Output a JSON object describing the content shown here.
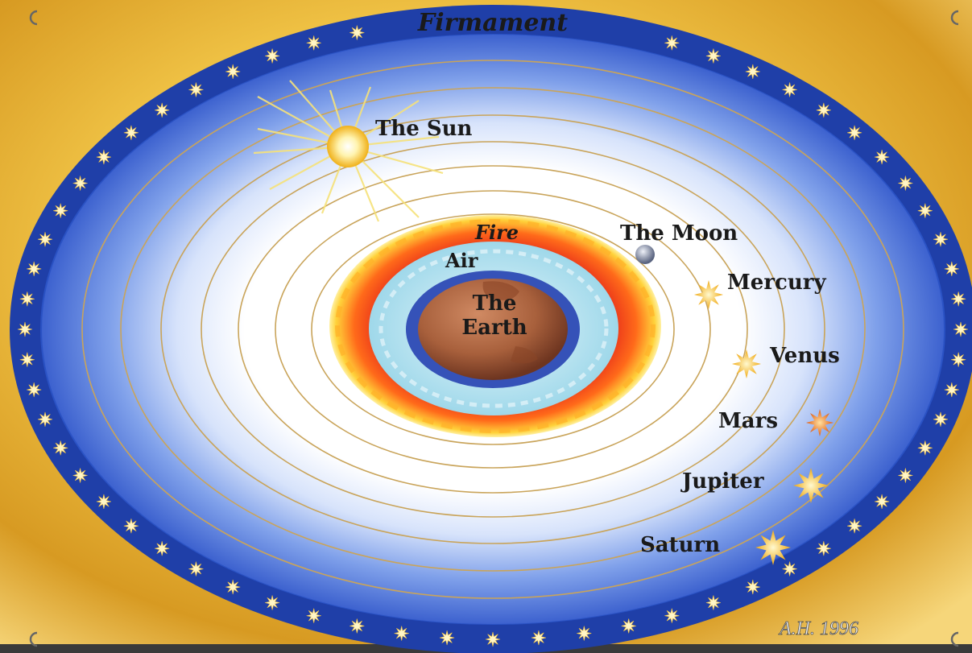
{
  "diagram": {
    "title": "Firmament",
    "spheres": {
      "earth_line1": "The",
      "earth_line2": "Earth",
      "air": "Air",
      "fire": "Fire"
    },
    "bodies": [
      {
        "key": "moon",
        "label": "The Moon"
      },
      {
        "key": "mercury",
        "label": "Mercury"
      },
      {
        "key": "venus",
        "label": "Venus"
      },
      {
        "key": "mars",
        "label": "Mars"
      },
      {
        "key": "sun",
        "label": "The Sun"
      },
      {
        "key": "jupiter",
        "label": "Jupiter"
      },
      {
        "key": "saturn",
        "label": "Saturn"
      }
    ],
    "signature": "A.H. 1996"
  },
  "colors": {
    "background_gold": "#e8b63a",
    "firmament_band": "#1f3fa8",
    "sky_blue": "#5c86e0",
    "sky_inner": "#ffffff",
    "orbit_gold": "#c9a45a",
    "fire_red": "#e23a1e",
    "fire_yellow": "#ffd23a",
    "air_cyan": "#bfe8f2",
    "earth_brown": "#a8623e"
  },
  "icons": [
    "sun-icon",
    "moon-icon",
    "planet-star-icon",
    "star-icon"
  ]
}
